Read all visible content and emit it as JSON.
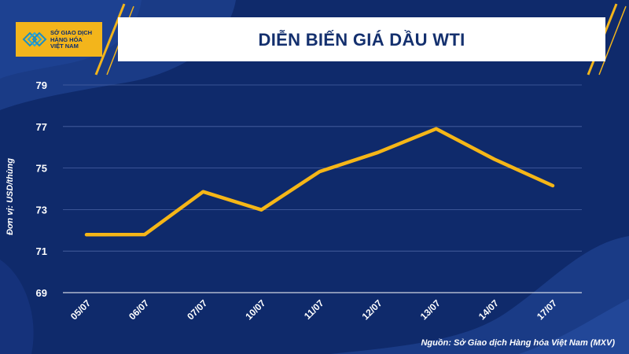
{
  "logo": {
    "line1": "SỞ GIAO DỊCH",
    "line2": "HÀNG HÓA",
    "line3": "VIỆT NAM"
  },
  "source": "Nguồn: Sở Giao dịch Hàng hóa Việt Nam (MXV)",
  "colors": {
    "background": "#0f2a6b",
    "line": "#f5b617",
    "accent": "#f3b51b"
  },
  "chart_data": {
    "type": "line",
    "title": "DIỄN BIẾN GIÁ DẦU WTI",
    "xlabel": "",
    "ylabel": "Đơn vị: USD/thùng",
    "categories": [
      "05/07",
      "06/07",
      "07/07",
      "10/07",
      "11/07",
      "12/07",
      "13/07",
      "14/07",
      "17/07"
    ],
    "series": [
      {
        "values": [
          71.79,
          71.8,
          73.86,
          72.99,
          74.83,
          75.75,
          76.89,
          75.42,
          74.15
        ]
      }
    ],
    "ylim": [
      69,
      79
    ],
    "yticks": [
      69,
      71,
      73,
      75,
      77,
      79
    ],
    "grid": true
  }
}
